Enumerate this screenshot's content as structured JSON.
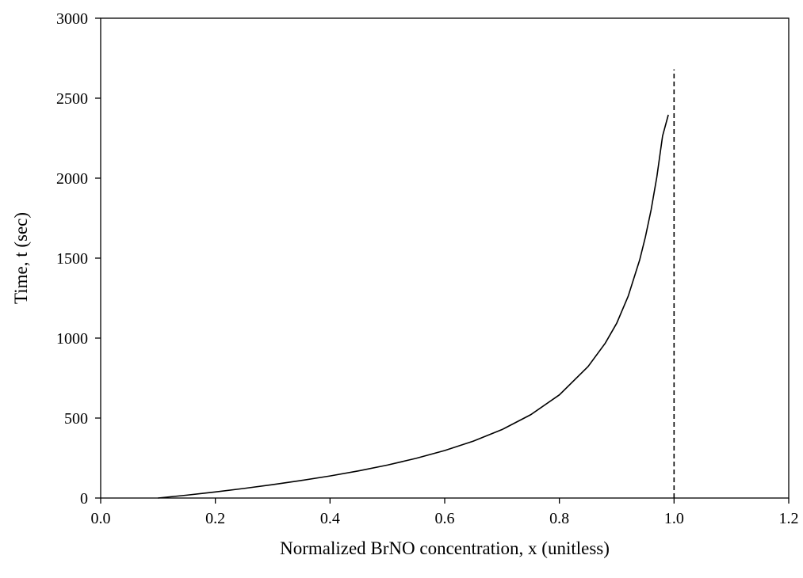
{
  "chart_data": {
    "type": "line",
    "title": "",
    "xlabel": "Normalized BrNO concentration, x (unitless)",
    "ylabel": "Time, t (sec)",
    "xlim": [
      0.0,
      1.2
    ],
    "ylim": [
      0,
      3000
    ],
    "x_ticks": [
      0.0,
      0.2,
      0.4,
      0.6,
      0.8,
      1.0,
      1.2
    ],
    "x_tick_labels": [
      "0.0",
      "0.2",
      "0.4",
      "0.6",
      "0.8",
      "1.0",
      "1.2"
    ],
    "y_ticks": [
      0,
      500,
      1000,
      1500,
      2000,
      2500,
      3000
    ],
    "y_tick_labels": [
      "0",
      "500",
      "1000",
      "1500",
      "2000",
      "2500",
      "3000"
    ],
    "grid": false,
    "legend": "none",
    "series": [
      {
        "style": "solid",
        "color": "#000000",
        "x": [
          0.1,
          0.15,
          0.2,
          0.25,
          0.3,
          0.35,
          0.4,
          0.45,
          0.5,
          0.55,
          0.6,
          0.65,
          0.7,
          0.75,
          0.8,
          0.85,
          0.88,
          0.9,
          0.92,
          0.94,
          0.95,
          0.96,
          0.97,
          0.98,
          0.99
        ],
        "y": [
          0,
          18,
          38,
          60,
          84,
          110,
          138,
          170,
          206,
          248,
          297,
          356,
          428,
          521,
          645,
          822,
          968,
          1093,
          1262,
          1488,
          1632,
          1802,
          2008,
          2264,
          2396
        ]
      },
      {
        "style": "dashed",
        "color": "#000000",
        "x": [
          1.0,
          1.0
        ],
        "y": [
          0,
          2680
        ]
      }
    ]
  }
}
